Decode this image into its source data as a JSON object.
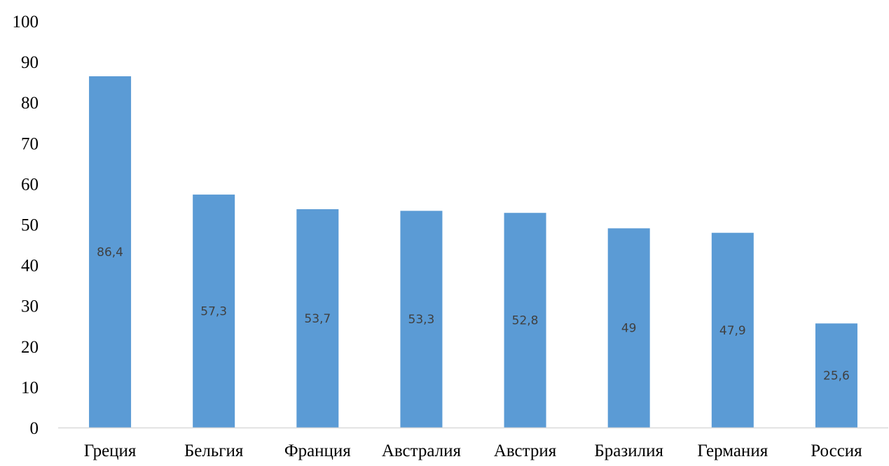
{
  "chart_data": {
    "type": "bar",
    "title": "",
    "xlabel": "",
    "ylabel": "",
    "categories": [
      "Греция",
      "Бельгия",
      "Франция",
      "Австралия",
      "Австрия",
      "Бразилия",
      "Германия",
      "Россия"
    ],
    "values": [
      86.4,
      57.3,
      53.7,
      53.3,
      52.8,
      49,
      47.9,
      25.6
    ],
    "data_labels": [
      "86,4",
      "57,3",
      "53,7",
      "53,3",
      "52,8",
      "49",
      "47,9",
      "25,6"
    ],
    "ylim": [
      0,
      100
    ],
    "y_ticks": [
      0,
      10,
      20,
      30,
      40,
      50,
      60,
      70,
      80,
      90,
      100
    ],
    "grid": false,
    "legend": "none",
    "bar_color": "#5B9BD5",
    "data_label_color": "#404040",
    "axis_color": "#D9D9D9"
  }
}
